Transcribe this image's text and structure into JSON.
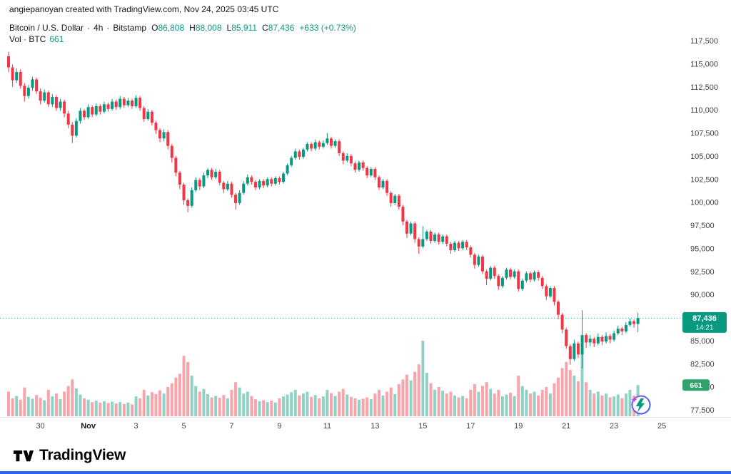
{
  "attribution": {
    "text": "angiepanoyan created with TradingView.com, Nov 24, 2025 03:45 UTC"
  },
  "legend": {
    "symbol": "Bitcoin / U.S. Dollar",
    "separator": "·",
    "interval": "4h",
    "exchange": "Bitstamp",
    "open": {
      "label": "O",
      "value": "86,808"
    },
    "high": {
      "label": "H",
      "value": "88,008"
    },
    "low": {
      "label": "L",
      "value": "85,911"
    },
    "close": {
      "label": "C",
      "value": "87,436"
    },
    "change": "+633 (+0.73%)",
    "volume_label": "Vol · BTC",
    "volume_value": "661"
  },
  "price_badge": {
    "price": "87,436",
    "countdown": "14:21"
  },
  "volume_badge": {
    "value": "661"
  },
  "footer": {
    "brand": "TradingView"
  },
  "colors": {
    "up": "#089981",
    "down": "#f23645",
    "volume_opacity": 0.45,
    "price_badge_bg": "#089981",
    "volume_badge_bg": "#2ea46c",
    "bottom_bar": "#2962ff",
    "axis_text": "#3f434e",
    "major_text": "#131722",
    "axis_line": "#e0e3eb",
    "spark_purple": "#a14bf4",
    "spark_blue": "#2962ff"
  },
  "chart_data": {
    "type": "candlestick",
    "title": "Bitcoin / U.S. Dollar · 4h · Bitstamp",
    "legend_position": "top-left",
    "grid": false,
    "price_axis": {
      "min": 77500,
      "max": 117500,
      "step": 2500,
      "labels": [
        "117,500",
        "115,000",
        "112,500",
        "110,000",
        "107,500",
        "105,000",
        "102,500",
        "100,000",
        "97,500",
        "95,000",
        "92,500",
        "90,000",
        "87,500",
        "85,000",
        "82,500",
        "80,000",
        "77,500"
      ],
      "values": [
        117500,
        115000,
        112500,
        110000,
        107500,
        105000,
        102500,
        100000,
        97500,
        95000,
        92500,
        90000,
        87500,
        85000,
        82500,
        80000,
        77500
      ]
    },
    "time_axis": {
      "labels": [
        "30",
        "Nov",
        "3",
        "5",
        "7",
        "9",
        "11",
        "13",
        "15",
        "17",
        "19",
        "21",
        "23",
        "25"
      ],
      "indices": [
        8,
        20,
        32,
        44,
        56,
        68,
        80,
        92,
        104,
        116,
        128,
        140,
        152,
        164
      ],
      "major": [
        false,
        true,
        false,
        false,
        false,
        false,
        false,
        false,
        false,
        false,
        false,
        false,
        false,
        false
      ]
    },
    "last_values": {
      "open": 86808,
      "high": 88008,
      "low": 85911,
      "close": 87436,
      "change": 633,
      "change_pct": 0.73,
      "volume_btc": 661,
      "countdown": "14:21"
    },
    "candles": [
      [
        115800,
        116300,
        114100,
        114600
      ],
      [
        114600,
        114900,
        112500,
        113200
      ],
      [
        113200,
        114500,
        112900,
        114100
      ],
      [
        114100,
        114400,
        112300,
        112600
      ],
      [
        112600,
        112900,
        110900,
        111500
      ],
      [
        111500,
        112700,
        111200,
        112400
      ],
      [
        112400,
        113600,
        112100,
        113300
      ],
      [
        113300,
        113500,
        111700,
        112000
      ],
      [
        112000,
        112300,
        110600,
        111000
      ],
      [
        111000,
        112200,
        110800,
        111900
      ],
      [
        111900,
        112100,
        110300,
        110600
      ],
      [
        110600,
        111700,
        110300,
        111400
      ],
      [
        111400,
        111600,
        109900,
        110200
      ],
      [
        110200,
        111200,
        109900,
        110900
      ],
      [
        110900,
        111100,
        109200,
        109600
      ],
      [
        109600,
        109900,
        108000,
        108400
      ],
      [
        108400,
        108700,
        106400,
        107200
      ],
      [
        107200,
        109100,
        107000,
        108800
      ],
      [
        108800,
        110200,
        108500,
        109900
      ],
      [
        109900,
        110100,
        108900,
        109200
      ],
      [
        109200,
        110600,
        109000,
        110300
      ],
      [
        110300,
        110500,
        109200,
        109500
      ],
      [
        109500,
        110700,
        109300,
        110400
      ],
      [
        110400,
        110600,
        109500,
        109800
      ],
      [
        109800,
        110900,
        109600,
        110600
      ],
      [
        110600,
        110800,
        109800,
        110100
      ],
      [
        110100,
        111200,
        109900,
        110900
      ],
      [
        110900,
        111100,
        110000,
        110300
      ],
      [
        110300,
        111500,
        110100,
        111200
      ],
      [
        111200,
        111400,
        110200,
        110500
      ],
      [
        110500,
        111300,
        110300,
        111000
      ],
      [
        111000,
        111200,
        110100,
        110400
      ],
      [
        110400,
        111600,
        110200,
        111300
      ],
      [
        111300,
        111500,
        109900,
        110200
      ],
      [
        110200,
        110400,
        108700,
        109000
      ],
      [
        109000,
        110100,
        108800,
        109800
      ],
      [
        109800,
        110000,
        108300,
        108600
      ],
      [
        108600,
        108800,
        107400,
        107800
      ],
      [
        107800,
        108000,
        106500,
        106900
      ],
      [
        106900,
        107900,
        106600,
        107600
      ],
      [
        107600,
        107800,
        105700,
        106100
      ],
      [
        106100,
        106300,
        104300,
        104800
      ],
      [
        104800,
        105000,
        102800,
        103200
      ],
      [
        103200,
        103400,
        101400,
        101900
      ],
      [
        101900,
        102100,
        99700,
        100200
      ],
      [
        100200,
        100400,
        98900,
        99600
      ],
      [
        99600,
        101600,
        99400,
        101300
      ],
      [
        101300,
        102700,
        101100,
        102400
      ],
      [
        102400,
        102600,
        101300,
        101700
      ],
      [
        101700,
        103200,
        101500,
        102900
      ],
      [
        102900,
        103700,
        102600,
        103500
      ],
      [
        103500,
        103700,
        102400,
        102700
      ],
      [
        102700,
        103600,
        102500,
        103300
      ],
      [
        103300,
        103500,
        101800,
        102100
      ],
      [
        102100,
        102300,
        101000,
        101400
      ],
      [
        101400,
        102300,
        101200,
        102000
      ],
      [
        102000,
        102200,
        100500,
        100800
      ],
      [
        100800,
        101000,
        99200,
        99900
      ],
      [
        99900,
        101300,
        99700,
        101000
      ],
      [
        101000,
        102300,
        100800,
        102000
      ],
      [
        102000,
        103000,
        101800,
        102700
      ],
      [
        102700,
        102900,
        101900,
        102200
      ],
      [
        102200,
        102400,
        101300,
        101600
      ],
      [
        101600,
        102500,
        101400,
        102300
      ],
      [
        102300,
        102500,
        101500,
        101800
      ],
      [
        101800,
        102700,
        101600,
        102500
      ],
      [
        102500,
        102700,
        101700,
        102000
      ],
      [
        102000,
        102800,
        101800,
        102600
      ],
      [
        102600,
        102800,
        101900,
        102200
      ],
      [
        102200,
        103300,
        102000,
        103100
      ],
      [
        103100,
        104200,
        102900,
        104000
      ],
      [
        104000,
        105000,
        103800,
        104800
      ],
      [
        104800,
        105800,
        104600,
        105500
      ],
      [
        105500,
        105700,
        104600,
        104900
      ],
      [
        104900,
        105900,
        104700,
        105700
      ],
      [
        105700,
        106500,
        105500,
        106300
      ],
      [
        106300,
        106500,
        105500,
        105800
      ],
      [
        105800,
        106800,
        105600,
        106500
      ],
      [
        106500,
        106700,
        105700,
        106000
      ],
      [
        106000,
        106700,
        105800,
        106400
      ],
      [
        106400,
        107500,
        106200,
        106900
      ],
      [
        106900,
        107100,
        105800,
        106100
      ],
      [
        106100,
        106800,
        105900,
        106600
      ],
      [
        106600,
        106800,
        105000,
        105300
      ],
      [
        105300,
        105500,
        104100,
        104500
      ],
      [
        104500,
        105300,
        104300,
        105000
      ],
      [
        105000,
        105200,
        103900,
        104200
      ],
      [
        104200,
        104400,
        103200,
        103500
      ],
      [
        103500,
        104500,
        103300,
        104300
      ],
      [
        104300,
        104500,
        103400,
        103700
      ],
      [
        103700,
        103900,
        102600,
        102900
      ],
      [
        102900,
        103800,
        102700,
        103600
      ],
      [
        103600,
        103800,
        102400,
        102700
      ],
      [
        102700,
        102900,
        101300,
        101600
      ],
      [
        101600,
        102500,
        101400,
        102300
      ],
      [
        102300,
        102500,
        100700,
        101000
      ],
      [
        101000,
        101200,
        99500,
        99900
      ],
      [
        99900,
        100900,
        99700,
        100700
      ],
      [
        100700,
        100900,
        99200,
        99500
      ],
      [
        99500,
        99700,
        97500,
        97900
      ],
      [
        97900,
        98100,
        96100,
        96600
      ],
      [
        96600,
        97900,
        96400,
        97700
      ],
      [
        97700,
        97900,
        95600,
        96000
      ],
      [
        96000,
        96200,
        94400,
        95200
      ],
      [
        95200,
        97400,
        95000,
        96000
      ],
      [
        96000,
        97000,
        95800,
        96800
      ],
      [
        96800,
        97000,
        95500,
        95800
      ],
      [
        95800,
        96700,
        95600,
        96500
      ],
      [
        96500,
        96700,
        95400,
        95700
      ],
      [
        95700,
        96500,
        95500,
        96300
      ],
      [
        96300,
        96500,
        95200,
        95500
      ],
      [
        95500,
        95700,
        94400,
        94800
      ],
      [
        94800,
        95800,
        94600,
        95600
      ],
      [
        95600,
        95800,
        94700,
        95000
      ],
      [
        95000,
        95900,
        94800,
        95700
      ],
      [
        95700,
        95900,
        94800,
        95100
      ],
      [
        95100,
        95300,
        94000,
        94300
      ],
      [
        94300,
        94500,
        92800,
        93200
      ],
      [
        93200,
        94300,
        93000,
        94100
      ],
      [
        94100,
        94300,
        92200,
        92500
      ],
      [
        92500,
        92700,
        91000,
        91700
      ],
      [
        91700,
        93100,
        91500,
        92900
      ],
      [
        92900,
        93100,
        91700,
        92000
      ],
      [
        92000,
        92200,
        90500,
        90900
      ],
      [
        90900,
        92000,
        90700,
        91800
      ],
      [
        91800,
        92900,
        91600,
        92700
      ],
      [
        92700,
        92900,
        91600,
        91900
      ],
      [
        91900,
        92700,
        91700,
        92500
      ],
      [
        92500,
        92700,
        90300,
        90600
      ],
      [
        90600,
        91700,
        90400,
        91500
      ],
      [
        91500,
        92500,
        91300,
        92300
      ],
      [
        92300,
        92500,
        91300,
        91600
      ],
      [
        91600,
        92600,
        91400,
        92400
      ],
      [
        92400,
        92600,
        91500,
        91800
      ],
      [
        91800,
        92000,
        90600,
        90900
      ],
      [
        90900,
        91100,
        89400,
        89800
      ],
      [
        89800,
        90900,
        89600,
        90700
      ],
      [
        90700,
        90900,
        88800,
        89200
      ],
      [
        89200,
        89400,
        87300,
        87800
      ],
      [
        87800,
        88000,
        85800,
        86200
      ],
      [
        86200,
        86400,
        84100,
        84400
      ],
      [
        84400,
        84600,
        82400,
        83000
      ],
      [
        83000,
        85100,
        82800,
        84700
      ],
      [
        84700,
        84900,
        83100,
        83500
      ],
      [
        83500,
        88300,
        82000,
        85600
      ],
      [
        85600,
        85800,
        84200,
        84800
      ],
      [
        84800,
        85600,
        84400,
        85200
      ],
      [
        85200,
        85400,
        84300,
        84700
      ],
      [
        84700,
        85800,
        84500,
        85400
      ],
      [
        85400,
        85600,
        84500,
        84900
      ],
      [
        84900,
        85900,
        84700,
        85500
      ],
      [
        85500,
        85700,
        84700,
        85100
      ],
      [
        85100,
        86100,
        84900,
        85800
      ],
      [
        85800,
        86600,
        85600,
        86300
      ],
      [
        86300,
        86500,
        85600,
        86000
      ],
      [
        86000,
        87000,
        85800,
        86700
      ],
      [
        86700,
        87400,
        86500,
        87100
      ],
      [
        87100,
        87300,
        86400,
        86800
      ],
      [
        86808,
        88008,
        85911,
        87436
      ]
    ],
    "volumes": [
      520,
      380,
      430,
      350,
      610,
      410,
      370,
      450,
      390,
      340,
      560,
      420,
      480,
      360,
      520,
      640,
      780,
      590,
      460,
      380,
      350,
      300,
      330,
      290,
      320,
      280,
      310,
      270,
      300,
      260,
      290,
      250,
      420,
      380,
      560,
      440,
      510,
      470,
      550,
      480,
      620,
      700,
      820,
      900,
      1280,
      1150,
      860,
      640,
      520,
      580,
      470,
      400,
      430,
      390,
      450,
      380,
      560,
      720,
      610,
      480,
      520,
      430,
      360,
      320,
      340,
      300,
      330,
      290,
      380,
      420,
      460,
      510,
      560,
      440,
      480,
      520,
      410,
      450,
      380,
      420,
      560,
      490,
      430,
      520,
      580,
      460,
      410,
      380,
      350,
      370,
      400,
      360,
      480,
      560,
      440,
      520,
      610,
      470,
      680,
      780,
      880,
      760,
      940,
      1100,
      1600,
      920,
      700,
      560,
      620,
      540,
      480,
      520,
      440,
      400,
      430,
      380,
      560,
      680,
      520,
      640,
      720,
      580,
      480,
      560,
      420,
      460,
      500,
      430,
      860,
      640,
      560,
      480,
      520,
      440,
      560,
      620,
      480,
      700,
      820,
      1020,
      1150,
      980,
      860,
      740,
      1380,
      720,
      560,
      480,
      520,
      440,
      480,
      400,
      420,
      460,
      380,
      480,
      560,
      440,
      661
    ]
  }
}
